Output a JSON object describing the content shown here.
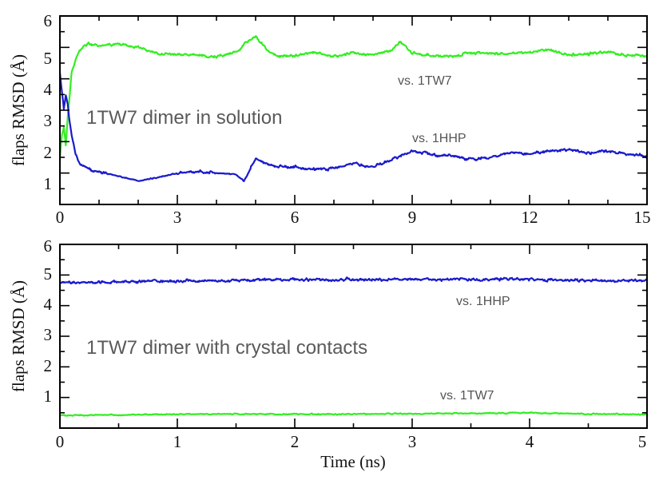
{
  "colors": {
    "green_series": "#33ee22",
    "blue_series": "#1a1acc",
    "frame": "#000000"
  },
  "chart_data": [
    {
      "type": "line",
      "title": "",
      "annotation": "1TW7 dimer in solution",
      "xlabel": "",
      "ylabel": "flaps RMSD (Å)",
      "xlim": [
        0,
        15
      ],
      "ylim": [
        0,
        6
      ],
      "xticks": [
        "0",
        "3",
        "6",
        "9",
        "12",
        "15"
      ],
      "yticks": [
        "1",
        "2",
        "3",
        "4",
        "5",
        "6"
      ],
      "series": [
        {
          "name": "vs. 1TW7",
          "color": "#33ee22",
          "x": [
            0,
            0.05,
            0.1,
            0.15,
            0.2,
            0.25,
            0.3,
            0.4,
            0.5,
            0.6,
            0.8,
            1,
            1.5,
            2,
            2.5,
            3,
            3.5,
            4,
            4.5,
            4.8,
            5,
            5.3,
            5.6,
            6,
            6.5,
            7,
            7.5,
            8,
            8.5,
            8.7,
            9,
            9.5,
            10,
            10.5,
            11,
            11.5,
            12,
            12.5,
            13,
            13.5,
            14,
            14.5,
            15
          ],
          "y": [
            1.5,
            2.2,
            2.5,
            1.9,
            2.8,
            3.5,
            4.2,
            4.6,
            4.9,
            5.05,
            5.1,
            5.05,
            5.1,
            5.0,
            4.8,
            4.8,
            4.75,
            4.7,
            4.85,
            5.2,
            5.35,
            4.9,
            4.7,
            4.75,
            4.85,
            4.7,
            4.85,
            4.75,
            4.9,
            5.2,
            4.8,
            4.75,
            4.7,
            4.85,
            4.8,
            4.8,
            4.85,
            4.9,
            4.75,
            4.8,
            4.85,
            4.75,
            4.7
          ]
        },
        {
          "name": "vs. 1HHP",
          "color": "#1a1acc",
          "x": [
            0,
            0.05,
            0.1,
            0.15,
            0.2,
            0.25,
            0.3,
            0.4,
            0.5,
            0.7,
            1,
            1.5,
            2,
            2.5,
            3,
            3.5,
            4,
            4.5,
            4.7,
            5,
            5.5,
            6,
            6.5,
            7,
            7.5,
            8,
            8.5,
            9,
            9.5,
            10,
            10.5,
            11,
            11.5,
            12,
            12.5,
            13,
            13.5,
            14,
            14.5,
            15
          ],
          "y": [
            4.2,
            3.6,
            3.0,
            3.5,
            3.2,
            2.6,
            2.2,
            1.6,
            1.3,
            1.15,
            1.05,
            0.9,
            0.75,
            0.85,
            1.0,
            1.05,
            1.0,
            0.95,
            0.75,
            1.45,
            1.2,
            1.2,
            1.1,
            1.15,
            1.3,
            1.2,
            1.45,
            1.7,
            1.6,
            1.55,
            1.45,
            1.5,
            1.65,
            1.6,
            1.7,
            1.75,
            1.65,
            1.7,
            1.6,
            1.55
          ]
        }
      ]
    },
    {
      "type": "line",
      "title": "",
      "annotation": "1TW7 dimer with crystal contacts",
      "xlabel": "Time (ns)",
      "ylabel": "flaps RMSD (Å)",
      "xlim": [
        0,
        5
      ],
      "ylim": [
        0,
        6
      ],
      "xticks": [
        "0",
        "1",
        "2",
        "3",
        "4",
        "5"
      ],
      "yticks": [
        "1",
        "2",
        "3",
        "4",
        "5",
        "6"
      ],
      "series": [
        {
          "name": "vs. 1HHP",
          "color": "#1a1acc",
          "x": [
            0,
            0.5,
            1,
            1.5,
            2,
            2.5,
            3,
            3.5,
            4,
            4.5,
            5
          ],
          "y": [
            4.75,
            4.78,
            4.8,
            4.82,
            4.85,
            4.85,
            4.85,
            4.85,
            4.85,
            4.82,
            4.8
          ]
        },
        {
          "name": "vs. 1TW7",
          "color": "#33ee22",
          "x": [
            0,
            0.5,
            1,
            1.5,
            2,
            2.5,
            3,
            3.5,
            4,
            4.5,
            5
          ],
          "y": [
            0.42,
            0.43,
            0.45,
            0.46,
            0.45,
            0.46,
            0.47,
            0.48,
            0.5,
            0.46,
            0.44
          ]
        }
      ]
    }
  ]
}
